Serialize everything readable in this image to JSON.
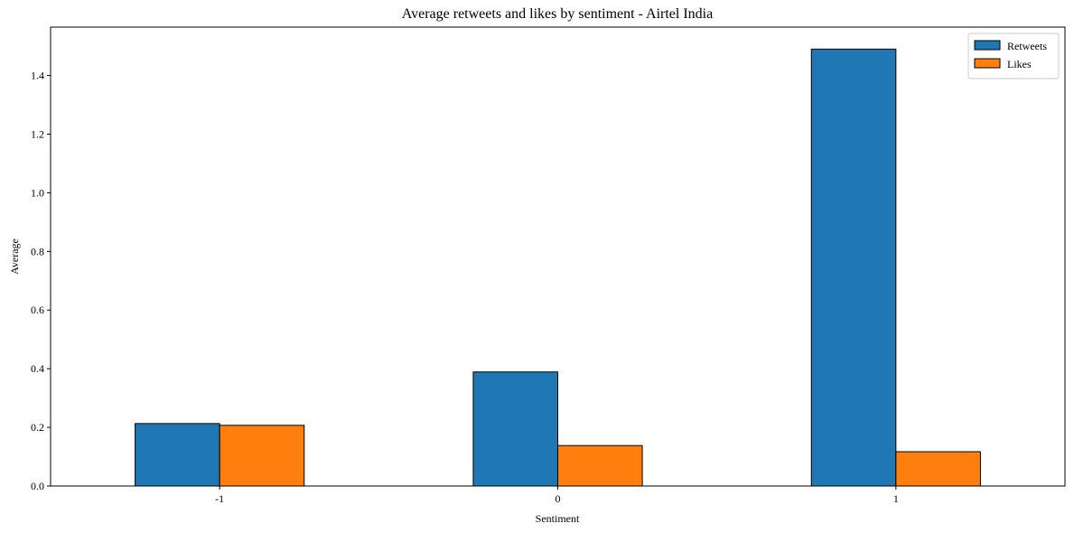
{
  "chart_data": {
    "type": "bar",
    "title": "Average retweets and likes by sentiment - Airtel India",
    "xlabel": "Sentiment",
    "ylabel": "Average",
    "categories": [
      "-1",
      "0",
      "1"
    ],
    "series": [
      {
        "name": "Retweets",
        "values": [
          0.213,
          0.389,
          1.49
        ],
        "color": "#1f77b4"
      },
      {
        "name": "Likes",
        "values": [
          0.207,
          0.138,
          0.117
        ],
        "color": "#ff7f0e"
      }
    ],
    "ylim": [
      0,
      1.565
    ],
    "yticks": [
      "0.0",
      "0.2",
      "0.4",
      "0.6",
      "0.8",
      "1.0",
      "1.2",
      "1.4"
    ],
    "grid": false,
    "legend_position": "top-right"
  }
}
